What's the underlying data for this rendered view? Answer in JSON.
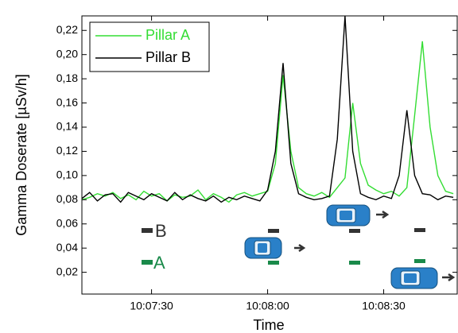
{
  "chart_data": {
    "type": "line",
    "x_label": "Time",
    "y_label": "Gamma Doserate [µSv/h]",
    "x": [
      "10:07:12",
      "10:07:14",
      "10:07:16",
      "10:07:18",
      "10:07:20",
      "10:07:22",
      "10:07:24",
      "10:07:26",
      "10:07:28",
      "10:07:30",
      "10:07:32",
      "10:07:34",
      "10:07:36",
      "10:07:38",
      "10:07:40",
      "10:07:42",
      "10:07:44",
      "10:07:46",
      "10:07:48",
      "10:07:50",
      "10:07:52",
      "10:07:54",
      "10:07:56",
      "10:07:58",
      "10:08:00",
      "10:08:02",
      "10:08:04",
      "10:08:06",
      "10:08:08",
      "10:08:10",
      "10:08:12",
      "10:08:14",
      "10:08:16",
      "10:08:18",
      "10:08:20",
      "10:08:22",
      "10:08:24",
      "10:08:26",
      "10:08:28",
      "10:08:30",
      "10:08:32",
      "10:08:34",
      "10:08:36",
      "10:08:38",
      "10:08:40",
      "10:08:42",
      "10:08:44",
      "10:08:46",
      "10:08:48"
    ],
    "series": [
      {
        "name": "Pillar A",
        "color": "#33dd33",
        "values": [
          0.08,
          0.082,
          0.085,
          0.083,
          0.086,
          0.081,
          0.084,
          0.08,
          0.087,
          0.083,
          0.085,
          0.079,
          0.084,
          0.082,
          0.083,
          0.088,
          0.08,
          0.085,
          0.082,
          0.078,
          0.084,
          0.086,
          0.083,
          0.085,
          0.087,
          0.11,
          0.183,
          0.12,
          0.09,
          0.085,
          0.083,
          0.086,
          0.082,
          0.09,
          0.098,
          0.16,
          0.11,
          0.092,
          0.088,
          0.085,
          0.087,
          0.083,
          0.09,
          0.15,
          0.211,
          0.14,
          0.1,
          0.087,
          0.085
        ]
      },
      {
        "name": "Pillar B",
        "color": "#000000",
        "values": [
          0.081,
          0.086,
          0.079,
          0.084,
          0.085,
          0.078,
          0.086,
          0.083,
          0.08,
          0.085,
          0.082,
          0.079,
          0.086,
          0.08,
          0.084,
          0.081,
          0.079,
          0.083,
          0.078,
          0.082,
          0.08,
          0.083,
          0.081,
          0.079,
          0.088,
          0.12,
          0.193,
          0.11,
          0.085,
          0.082,
          0.08,
          0.081,
          0.083,
          0.13,
          0.232,
          0.12,
          0.085,
          0.082,
          0.08,
          0.083,
          0.081,
          0.1,
          0.154,
          0.1,
          0.085,
          0.084,
          0.08,
          0.083,
          0.082
        ]
      }
    ],
    "xlim": [
      "10:07:12",
      "10:08:49"
    ],
    "xticks": [
      "10:07:30",
      "10:08:00",
      "10:08:30"
    ],
    "ylim": [
      0.002,
      0.232
    ],
    "yticks": [
      {
        "value": 0.02,
        "label": "0,02"
      },
      {
        "value": 0.04,
        "label": "0,04"
      },
      {
        "value": 0.06,
        "label": "0,06"
      },
      {
        "value": 0.08,
        "label": "0,08"
      },
      {
        "value": 0.1,
        "label": "0,10"
      },
      {
        "value": 0.12,
        "label": "0,12"
      },
      {
        "value": 0.14,
        "label": "0,14"
      },
      {
        "value": 0.16,
        "label": "0,16"
      },
      {
        "value": 0.18,
        "label": "0,18"
      },
      {
        "value": 0.2,
        "label": "0,20"
      },
      {
        "value": 0.22,
        "label": "0,22"
      }
    ],
    "legend": "top-left",
    "annotations": [
      "B",
      "A"
    ]
  }
}
